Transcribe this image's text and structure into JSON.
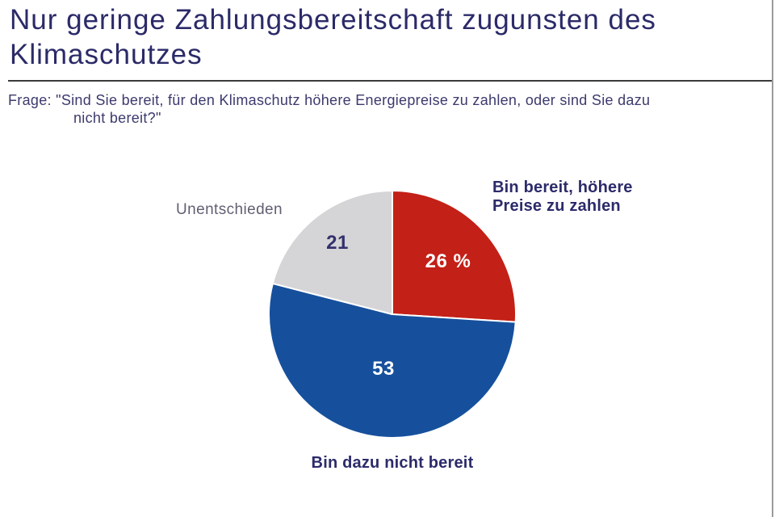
{
  "slide": {
    "title": "Nur geringe Zahlungsbereitschaft zugunsten des Klimaschutzes",
    "question": {
      "prefix": "Frage:",
      "line1": "\"Sind Sie bereit, für den Klimaschutz höhere Energiepreise zu zahlen, oder sind Sie dazu",
      "line2": "nicht bereit?\""
    }
  },
  "chart_data": {
    "type": "pie",
    "unit": "percent",
    "start_angle_deg": 0,
    "direction": "clockwise",
    "slices": [
      {
        "label": "Bin bereit, höhere Preise zu zahlen",
        "label_lines": [
          "Bin bereit, höhere",
          "Preise zu zahlen"
        ],
        "value": 26,
        "value_display": "26 %",
        "color": "#c32017",
        "value_color": "#ffffff"
      },
      {
        "label": "Bin dazu nicht bereit",
        "value": 53,
        "value_display": "53",
        "color": "#16509d",
        "value_color": "#ffffff"
      },
      {
        "label": "Unentschieden",
        "value": 21,
        "value_display": "21",
        "color": "#d5d4d6",
        "value_color": "#34316d"
      }
    ]
  },
  "colors": {
    "title_navy": "#2b2a68",
    "label_navy": "#2c2b6a",
    "question_navy": "#3c3a6d",
    "unentschieden_text": "#615f72",
    "slice_red": "#c32017",
    "slice_blue": "#16509d",
    "slice_gray": "#d5d4d6",
    "rule_dark": "#3b3b3b",
    "right_border_gray": "#9b9b9b"
  }
}
